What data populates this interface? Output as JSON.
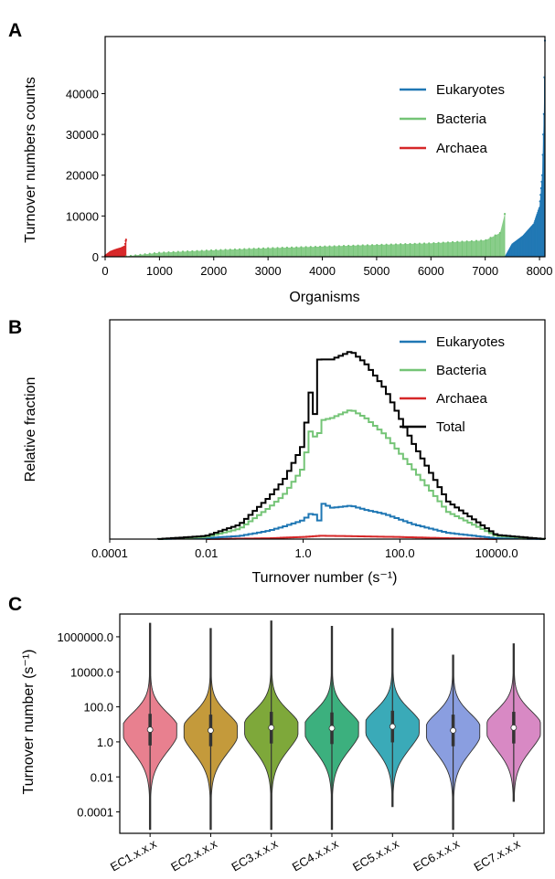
{
  "panels": {
    "a": {
      "letter": "A",
      "ylabel": "Turnover numbers counts",
      "xlabel": "Organisms",
      "legend": [
        {
          "label": "Eukaryotes",
          "color": "#1f77b4"
        },
        {
          "label": "Bacteria",
          "color": "#74c476"
        },
        {
          "label": "Archaea",
          "color": "#d62728"
        }
      ]
    },
    "b": {
      "letter": "B",
      "ylabel": "Relative fraction",
      "xlabel": "Turnover number (s⁻¹)",
      "legend": [
        {
          "label": "Eukaryotes",
          "color": "#1f77b4"
        },
        {
          "label": "Bacteria",
          "color": "#74c476"
        },
        {
          "label": "Archaea",
          "color": "#d62728"
        },
        {
          "label": "Total",
          "color": "#000000"
        }
      ]
    },
    "c": {
      "letter": "C",
      "ylabel": "Turnover number (s⁻¹)"
    }
  },
  "chart_data": [
    {
      "panel": "A",
      "type": "bar",
      "xlabel": "Organisms",
      "ylabel": "Turnover numbers counts",
      "xlim": [
        0,
        8100
      ],
      "ylim": [
        0,
        54000
      ],
      "xticks": [
        0,
        1000,
        2000,
        3000,
        4000,
        5000,
        6000,
        7000,
        8000
      ],
      "yticks": [
        0,
        10000,
        20000,
        30000,
        40000
      ],
      "legend_position": "top-right",
      "series": [
        {
          "name": "Archaea",
          "color": "#d62728",
          "x": [
            0,
            100,
            200,
            300,
            360,
            385
          ],
          "y": [
            200,
            1200,
            1700,
            2100,
            2500,
            4200
          ]
        },
        {
          "name": "Bacteria",
          "color": "#74c476",
          "x": [
            385,
            1000,
            2000,
            3000,
            4000,
            5000,
            6000,
            7000,
            7300,
            7360
          ],
          "y": [
            100,
            1000,
            1600,
            2100,
            2500,
            2900,
            3300,
            4000,
            6000,
            10500
          ]
        },
        {
          "name": "Eukaryotes",
          "color": "#1f77b4",
          "x": [
            7380,
            7500,
            7700,
            7900,
            8000,
            8050,
            8080,
            8100
          ],
          "y": [
            100,
            3000,
            5000,
            8000,
            12000,
            20000,
            35000,
            53000
          ]
        }
      ]
    },
    {
      "panel": "B",
      "type": "line",
      "xscale": "log",
      "xlabel": "Turnover number (s⁻¹)",
      "ylabel": "Relative fraction",
      "xticks": [
        "0.0001",
        "0.01",
        "1.0",
        "100.0",
        "10000.0"
      ],
      "xlim": [
        0.0001,
        100000
      ],
      "ylim": [
        0,
        1.05
      ],
      "legend_position": "top-right",
      "series": [
        {
          "name": "Eukaryotes",
          "color": "#1f77b4",
          "x": [
            0.001,
            0.01,
            0.05,
            0.2,
            0.4,
            1.0,
            1.6,
            2.3,
            2.6,
            4,
            10,
            20,
            50,
            200,
            1000,
            10000,
            100000
          ],
          "y": [
            0.0,
            0.005,
            0.015,
            0.04,
            0.06,
            0.09,
            0.13,
            0.08,
            0.17,
            0.15,
            0.16,
            0.14,
            0.12,
            0.07,
            0.03,
            0.004,
            0.0
          ]
        },
        {
          "name": "Bacteria",
          "color": "#74c476",
          "x": [
            0.001,
            0.01,
            0.05,
            0.2,
            0.4,
            1.0,
            1.6,
            2.0,
            2.3,
            2.6,
            4,
            10,
            20,
            50,
            200,
            1000,
            10000,
            100000
          ],
          "y": [
            0.0,
            0.01,
            0.05,
            0.15,
            0.21,
            0.34,
            0.57,
            0.38,
            0.62,
            0.57,
            0.58,
            0.62,
            0.58,
            0.5,
            0.33,
            0.13,
            0.015,
            0.0
          ]
        },
        {
          "name": "Archaea",
          "color": "#d62728",
          "x": [
            0.01,
            0.2,
            1.0,
            2.3,
            10,
            100,
            1000,
            10000
          ],
          "y": [
            0.0,
            0.004,
            0.01,
            0.016,
            0.014,
            0.01,
            0.004,
            0.0
          ]
        },
        {
          "name": "Total",
          "color": "#000000",
          "x": [
            0.001,
            0.01,
            0.05,
            0.2,
            0.4,
            1.0,
            1.6,
            1.8,
            2.0,
            2.3,
            2.6,
            4,
            10,
            20,
            50,
            200,
            1000,
            10000,
            100000
          ],
          "y": [
            0.0,
            0.015,
            0.07,
            0.2,
            0.28,
            0.45,
            0.78,
            0.55,
            0.7,
            1.0,
            0.86,
            0.86,
            0.9,
            0.84,
            0.72,
            0.45,
            0.18,
            0.02,
            0.0
          ]
        }
      ]
    },
    {
      "panel": "C",
      "type": "violin",
      "yscale": "log",
      "ylabel": "Turnover number (s⁻¹)",
      "categories": [
        "EC1.x.x.x",
        "EC2.x.x.x",
        "EC3.x.x.x",
        "EC4.x.x.x",
        "EC5.x.x.x",
        "EC6.x.x.x",
        "EC7.x.x.x"
      ],
      "yticks": [
        "0.0001",
        "0.01",
        "1.0",
        "100.0",
        "10000.0",
        "1000000.0"
      ],
      "ylim": [
        6e-06,
        20000000
      ],
      "colors": [
        "#e8808f",
        "#c49a3b",
        "#7ea83a",
        "#3cb07e",
        "#3aaab8",
        "#8a9ee0",
        "#d889c4"
      ],
      "series": [
        {
          "name": "median",
          "values": [
            5.0,
            4.5,
            6.5,
            6.0,
            7.5,
            4.5,
            6.5
          ]
        },
        {
          "name": "min",
          "values": [
            1e-05,
            1e-05,
            1e-05,
            1e-05,
            0.0002,
            1e-05,
            0.0004
          ]
        },
        {
          "name": "max",
          "values": [
            6000000,
            3000000,
            8000000,
            4000000,
            3000000,
            90000,
            400000
          ]
        }
      ]
    }
  ]
}
